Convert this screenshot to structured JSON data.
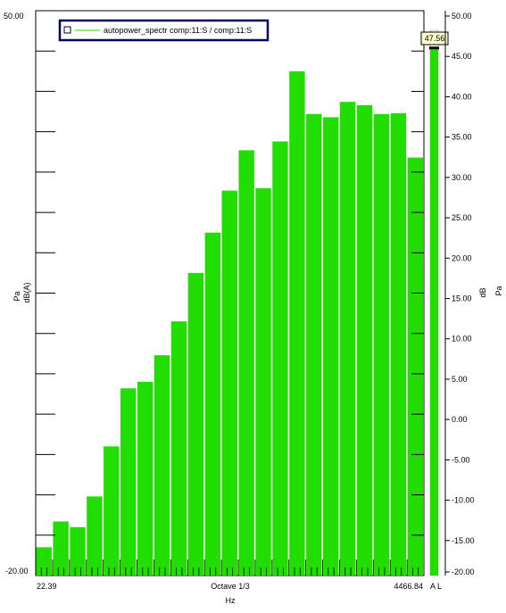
{
  "chart_data": {
    "type": "bar",
    "legend": "autopower_spectr comp:11:S / comp:11:S",
    "left_axis": {
      "top_label": "50.00",
      "bottom_label": "-20.00",
      "unit_labels": [
        "Pa",
        "dB(A)"
      ],
      "ylim": [
        -20,
        50
      ]
    },
    "x_axis": {
      "left_label": "22.39",
      "center_label": "Octave 1/3",
      "right_label": "4466.84",
      "unit_label": "Hz"
    },
    "values": [
      -16.5,
      -13.3,
      -14.0,
      -10.2,
      -4.0,
      3.2,
      4.0,
      7.3,
      11.5,
      17.5,
      22.5,
      27.7,
      32.7,
      28.0,
      33.8,
      42.5,
      37.2,
      36.8,
      38.7,
      38.3,
      37.2,
      37.3,
      31.8
    ],
    "right_axis": {
      "ticks": [
        "50.00",
        "45.00",
        "40.00",
        "35.00",
        "30.00",
        "25.00",
        "20.00",
        "15.00",
        "10.00",
        "5.00",
        "0.00",
        "-5.00",
        "-10.00",
        "-15.00",
        "-20.00"
      ],
      "tick_values": [
        50,
        45,
        40,
        35,
        30,
        25,
        20,
        15,
        10,
        5,
        0,
        -5,
        -10,
        -15,
        -20
      ],
      "ylim": [
        -20,
        50
      ],
      "unit_labels": [
        "dB",
        "Pa"
      ]
    },
    "level_meter": {
      "value": 47.56,
      "label": "47.56",
      "bottom_label": "A L"
    },
    "colors": {
      "bar": "#22dd00",
      "legend_frame": "#000066",
      "axis": "#000000"
    },
    "grid": false
  }
}
